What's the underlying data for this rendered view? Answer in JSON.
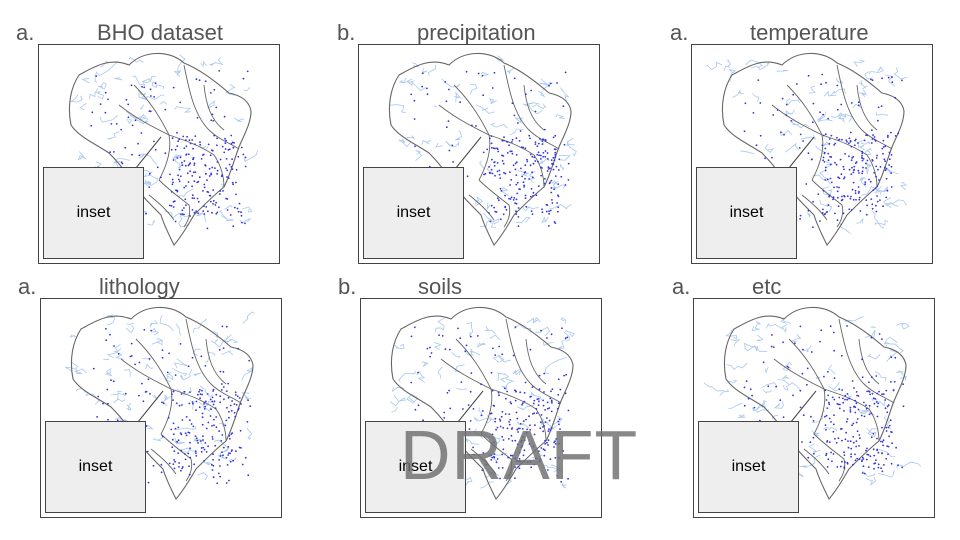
{
  "panels": [
    {
      "letter": "a.",
      "title": "BHO dataset",
      "inset_label": "inset"
    },
    {
      "letter": "b.",
      "title": "precipitation",
      "inset_label": "inset"
    },
    {
      "letter": "a.",
      "title": "temperature",
      "inset_label": "inset"
    },
    {
      "letter": "a.",
      "title": "lithology",
      "inset_label": "inset"
    },
    {
      "letter": "b.",
      "title": "soils",
      "inset_label": "inset"
    },
    {
      "letter": "a.",
      "title": "etc",
      "inset_label": "inset"
    }
  ],
  "watermark": "DRAFT",
  "colors": {
    "border": "#444444",
    "state_lines": "#666666",
    "rivers": "#a9c8ee",
    "stations": "#3333dd",
    "inset_fill": "#eeeeee",
    "watermark": "#6e6e6e"
  }
}
